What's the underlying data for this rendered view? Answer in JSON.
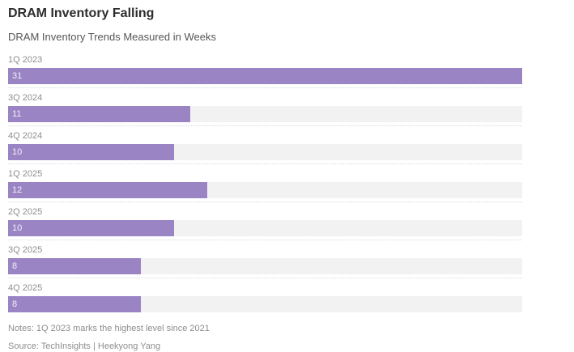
{
  "header": {
    "title": "DRAM Inventory Falling",
    "subtitle": "DRAM Inventory Trends Measured in Weeks"
  },
  "chart_data": {
    "type": "bar",
    "orientation": "horizontal",
    "title": "DRAM Inventory Falling",
    "subtitle": "DRAM Inventory Trends Measured in Weeks",
    "categories": [
      "1Q 2023",
      "3Q 2024",
      "4Q 2024",
      "1Q 2025",
      "2Q 2025",
      "3Q 2025",
      "4Q 2025"
    ],
    "values": [
      31,
      11,
      10,
      12,
      10,
      8,
      8
    ],
    "value_labels": [
      "31",
      "11",
      "10",
      "12",
      "10",
      "8",
      "8"
    ],
    "unit": "weeks",
    "xlim": [
      0,
      31
    ],
    "grid": false,
    "legend": "none",
    "bar_color": "#9a84c4",
    "track_color": "#f2f2f2"
  },
  "footer": {
    "notes": "Notes: 1Q 2023 marks the highest level since 2021",
    "source": "Source: TechInsights | Heekyong Yang"
  }
}
